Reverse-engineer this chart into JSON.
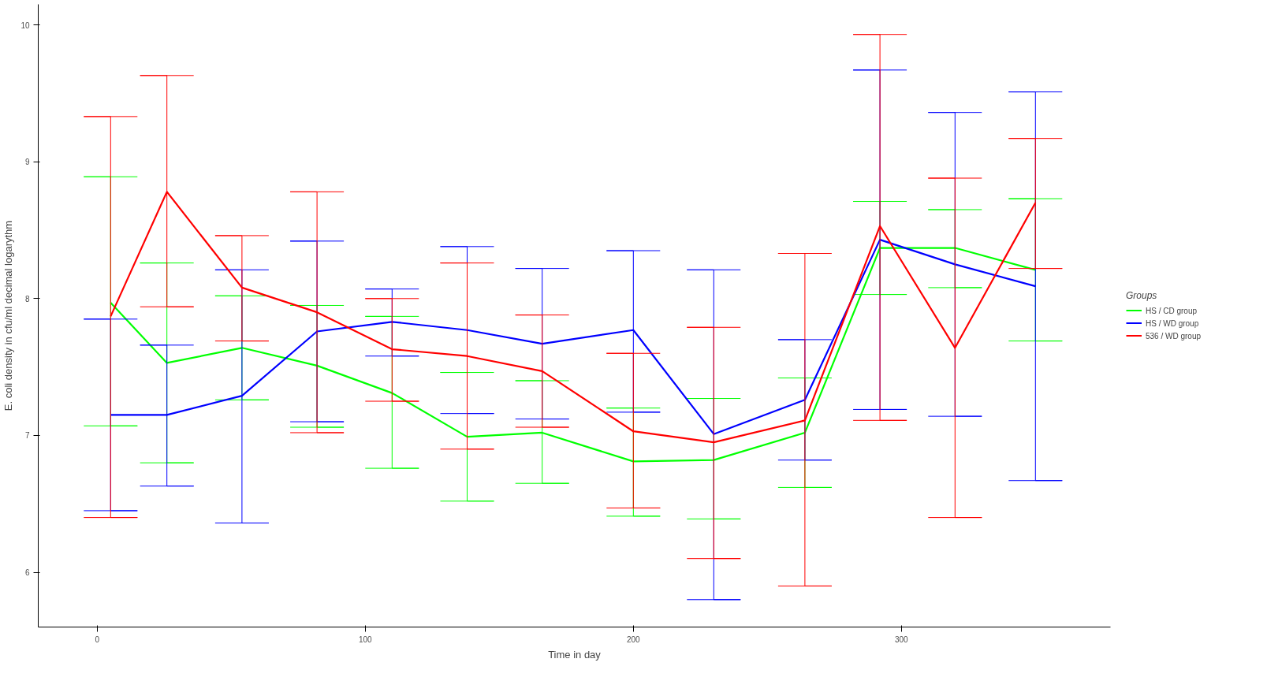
{
  "chart_data": {
    "type": "line",
    "xlabel": "Time in day",
    "ylabel": "E. coli density in cfu/ml decimal logarythm",
    "legend_title": "Groups",
    "x": [
      5,
      26,
      54,
      82,
      110,
      138,
      166,
      200,
      230,
      264,
      292,
      320,
      350
    ],
    "xlim": [
      -22,
      378
    ],
    "ylim": [
      5.6,
      10.15
    ],
    "xticks": [
      0,
      100,
      200,
      300
    ],
    "yticks": [
      6,
      7,
      8,
      9,
      10
    ],
    "grid": false,
    "legend": "right",
    "marker": "none",
    "line_style": "solid",
    "series": [
      {
        "name": "HS / CD group",
        "color": "#00ff00",
        "values": [
          7.97,
          7.53,
          7.64,
          7.51,
          7.31,
          6.99,
          7.02,
          6.81,
          6.82,
          7.02,
          8.37,
          8.37,
          8.21
        ],
        "errors": [
          [
            7.07,
            8.89
          ],
          [
            6.8,
            8.26
          ],
          [
            7.26,
            8.02
          ],
          [
            7.06,
            7.95
          ],
          [
            6.76,
            7.87
          ],
          [
            6.52,
            7.46
          ],
          [
            6.65,
            7.4
          ],
          [
            6.41,
            7.2
          ],
          [
            6.39,
            7.27
          ],
          [
            6.62,
            7.42
          ],
          [
            8.03,
            8.71
          ],
          [
            8.08,
            8.65
          ],
          [
            7.69,
            8.73
          ]
        ]
      },
      {
        "name": "HS / WD group",
        "color": "#0000ff",
        "values": [
          7.15,
          7.15,
          7.29,
          7.76,
          7.83,
          7.77,
          7.67,
          7.77,
          7.01,
          7.26,
          8.43,
          8.25,
          8.09
        ],
        "errors": [
          [
            6.45,
            7.85
          ],
          [
            6.63,
            7.66
          ],
          [
            6.36,
            8.21
          ],
          [
            7.1,
            8.42
          ],
          [
            7.58,
            8.07
          ],
          [
            7.16,
            8.38
          ],
          [
            7.12,
            8.22
          ],
          [
            7.17,
            8.35
          ],
          [
            5.8,
            8.21
          ],
          [
            6.82,
            7.7
          ],
          [
            7.19,
            9.67
          ],
          [
            7.14,
            9.36
          ],
          [
            6.67,
            9.51
          ]
        ]
      },
      {
        "name": "536 / WD group",
        "color": "#ff0000",
        "values": [
          7.87,
          8.78,
          8.08,
          7.9,
          7.63,
          7.58,
          7.47,
          7.03,
          6.95,
          7.11,
          8.53,
          7.64,
          8.7
        ],
        "errors": [
          [
            6.4,
            9.33
          ],
          [
            7.94,
            9.63
          ],
          [
            7.69,
            8.46
          ],
          [
            7.02,
            8.78
          ],
          [
            7.25,
            8.0
          ],
          [
            6.9,
            8.26
          ],
          [
            7.06,
            7.88
          ],
          [
            6.47,
            7.6
          ],
          [
            6.1,
            7.79
          ],
          [
            5.9,
            8.33
          ],
          [
            7.11,
            9.93
          ],
          [
            6.4,
            8.88
          ],
          [
            8.22,
            9.17
          ]
        ]
      }
    ]
  }
}
